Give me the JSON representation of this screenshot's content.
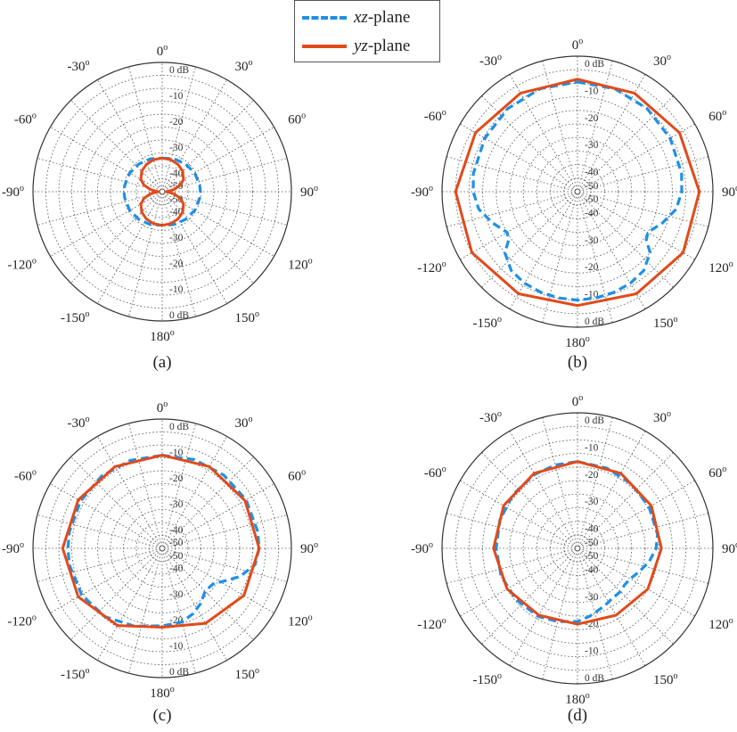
{
  "legend": {
    "items": [
      {
        "italic": "xz",
        "suffix": "-plane",
        "color": "#1e90e6",
        "style": "dashed"
      },
      {
        "italic": "yz",
        "suffix": "-plane",
        "color": "#e24a1a",
        "style": "solid"
      }
    ]
  },
  "chart_data": [
    {
      "type": "polar",
      "caption": "(a)",
      "r_unit": "dB",
      "r_range": [
        -50,
        0
      ],
      "r_ticks": [
        "0 dB",
        "-10",
        "-20",
        "-30",
        "-40",
        "-50"
      ],
      "angle_ticks": [
        "0",
        "30",
        "60",
        "90",
        "120",
        "150",
        "180",
        "-150",
        "-120",
        "-90",
        "-60",
        "-30"
      ],
      "series": [
        {
          "name": "xz-plane",
          "color": "#1e90e6",
          "style": "dashed",
          "theta": [
            0,
            20,
            40,
            60,
            80,
            90,
            100,
            120,
            140,
            160,
            180,
            200,
            220,
            240,
            260,
            270,
            280,
            300,
            320,
            340
          ],
          "r_db": [
            -37,
            -36.5,
            -36,
            -35.5,
            -35.3,
            -35.2,
            -35.3,
            -35.5,
            -36,
            -36.5,
            -37,
            -36.5,
            -36,
            -35.5,
            -35.3,
            -35.2,
            -35.3,
            -35.5,
            -36,
            -36.5
          ]
        },
        {
          "name": "yz-plane",
          "color": "#e24a1a",
          "style": "solid",
          "theta": [
            0,
            15,
            30,
            45,
            60,
            70,
            80,
            85,
            90,
            95,
            100,
            110,
            120,
            135,
            150,
            165,
            180,
            195,
            210,
            225,
            240,
            250,
            260,
            265,
            270,
            275,
            280,
            290,
            300,
            315,
            330,
            345
          ],
          "r_db": [
            -37,
            -37.2,
            -37.8,
            -38.8,
            -40.5,
            -42.5,
            -45.5,
            -47.5,
            -48.5,
            -47.5,
            -45.5,
            -42.5,
            -40.5,
            -38.8,
            -37.8,
            -37.2,
            -37,
            -37.2,
            -37.8,
            -38.8,
            -40.5,
            -42.5,
            -45.5,
            -47.5,
            -48.5,
            -47.5,
            -45.5,
            -42.5,
            -40.5,
            -38.8,
            -37.8,
            -37.2
          ]
        }
      ]
    },
    {
      "type": "polar",
      "caption": "(b)",
      "r_unit": "dB",
      "r_range": [
        -50,
        0
      ],
      "r_ticks": [
        "0 dB",
        "-10",
        "-20",
        "-30",
        "-40",
        "-50"
      ],
      "angle_ticks": [
        "0",
        "30",
        "60",
        "90",
        "120",
        "150",
        "180",
        "-150",
        "-120",
        "-90",
        "-60",
        "-30"
      ],
      "series": [
        {
          "name": "xz-plane",
          "color": "#1e90e6",
          "style": "dashed",
          "theta": [
            0,
            20,
            40,
            60,
            80,
            90,
            100,
            110,
            120,
            125,
            130,
            140,
            150,
            160,
            170,
            180,
            190,
            200,
            210,
            220,
            230,
            235,
            240,
            250,
            260,
            270,
            280,
            300,
            320,
            340
          ],
          "r_db": [
            -9.5,
            -9.6,
            -10,
            -10.5,
            -11,
            -11.5,
            -13,
            -16.5,
            -20,
            -19,
            -15,
            -12,
            -11,
            -10.5,
            -10.2,
            -10,
            -10.2,
            -10.5,
            -11,
            -12,
            -15,
            -19,
            -20,
            -16.5,
            -13,
            -11.5,
            -11,
            -10.5,
            -10,
            -9.6
          ]
        },
        {
          "name": "yz-plane",
          "color": "#e24a1a",
          "style": "solid",
          "theta": [
            0,
            30,
            60,
            90,
            120,
            150,
            180,
            210,
            240,
            270,
            300,
            330
          ],
          "r_db": [
            -8.5,
            -8,
            -6.5,
            -5,
            -5,
            -6.5,
            -8,
            -6.5,
            -5,
            -5,
            -6.5,
            -8
          ]
        }
      ]
    },
    {
      "type": "polar",
      "caption": "(c)",
      "r_unit": "dB",
      "r_range": [
        -50,
        0
      ],
      "r_ticks": [
        "0 dB",
        "-10",
        "-20",
        "-30",
        "-40",
        "-50"
      ],
      "angle_ticks": [
        "0",
        "30",
        "60",
        "90",
        "120",
        "150",
        "180",
        "-150",
        "-120",
        "-90",
        "-60",
        "-30"
      ],
      "series": [
        {
          "name": "xz-plane",
          "color": "#1e90e6",
          "style": "dashed",
          "theta": [
            0,
            20,
            40,
            60,
            80,
            90,
            100,
            110,
            118,
            125,
            135,
            145,
            155,
            165,
            180,
            200,
            220,
            240,
            260,
            270,
            280,
            300,
            320,
            340
          ],
          "r_db": [
            -14,
            -13.5,
            -13,
            -12.5,
            -12.5,
            -12.5,
            -13.5,
            -18,
            -23,
            -26,
            -26.5,
            -24,
            -22,
            -20.5,
            -20,
            -18,
            -15.5,
            -14,
            -13.5,
            -13.5,
            -13.5,
            -13.5,
            -13.5,
            -13.8
          ]
        },
        {
          "name": "yz-plane",
          "color": "#e24a1a",
          "style": "solid",
          "theta": [
            0,
            30,
            60,
            90,
            120,
            150,
            180,
            210,
            240,
            270,
            300,
            330
          ],
          "r_db": [
            -14,
            -13.5,
            -13,
            -12.5,
            -13.5,
            -16.5,
            -19.5,
            -15.5,
            -12.5,
            -11.5,
            -12.5,
            -13.5
          ]
        }
      ]
    },
    {
      "type": "polar",
      "caption": "(d)",
      "r_unit": "dB",
      "r_range": [
        -50,
        0
      ],
      "r_ticks": [
        "0 dB",
        "-10",
        "-20",
        "-30",
        "-40",
        "-50"
      ],
      "angle_ticks": [
        "0",
        "30",
        "60",
        "90",
        "120",
        "150",
        "180",
        "-150",
        "-120",
        "-90",
        "-60",
        "-30"
      ],
      "series": [
        {
          "name": "xz-plane",
          "color": "#1e90e6",
          "style": "dashed",
          "theta": [
            0,
            20,
            40,
            60,
            80,
            90,
            100,
            110,
            120,
            128,
            135,
            145,
            155,
            170,
            180,
            195,
            210,
            230,
            250,
            270,
            290,
            310,
            330,
            345
          ],
          "r_db": [
            -18,
            -18.5,
            -19,
            -19.5,
            -20,
            -21,
            -23,
            -25.5,
            -27.5,
            -28,
            -27.5,
            -27.5,
            -26.5,
            -24.5,
            -23,
            -22,
            -21,
            -20.5,
            -20,
            -20,
            -19.5,
            -19,
            -18.5,
            -18.2
          ]
        },
        {
          "name": "yz-plane",
          "color": "#e24a1a",
          "style": "solid",
          "theta": [
            0,
            30,
            60,
            90,
            120,
            150,
            180,
            210,
            240,
            270,
            300,
            330
          ],
          "r_db": [
            -18,
            -18,
            -18.5,
            -19,
            -20,
            -21.5,
            -22,
            -21.5,
            -20,
            -19,
            -18.5,
            -18
          ]
        }
      ]
    }
  ]
}
